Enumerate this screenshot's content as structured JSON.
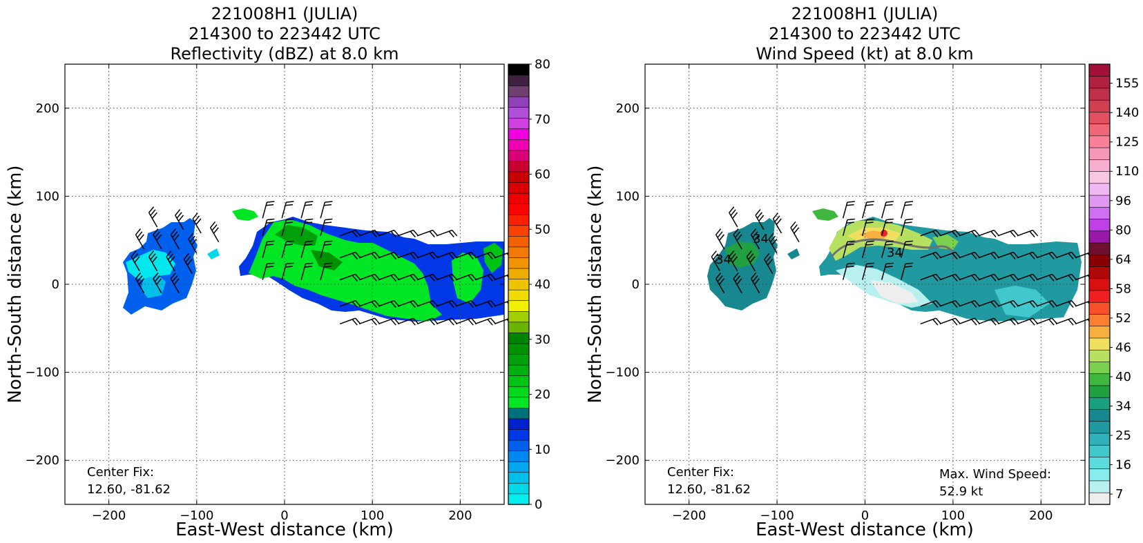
{
  "chart_data": [
    {
      "type": "heatmap",
      "title_lines": [
        "221008H1 (JULIA)",
        "214300 to 223442 UTC",
        "Reflectivity (dBZ) at 8.0 km"
      ],
      "xlabel": "East-West distance (km)",
      "ylabel": "North-South distance (km)",
      "xlim": [
        -250,
        250
      ],
      "ylim": [
        -250,
        250
      ],
      "xticks": [
        -200,
        -100,
        0,
        100,
        200
      ],
      "yticks": [
        -200,
        -100,
        0,
        100,
        200
      ],
      "grid": true,
      "colorbar": {
        "ticks": [
          0,
          10,
          20,
          30,
          40,
          50,
          60,
          70,
          80
        ],
        "min": 0,
        "max": 80,
        "colors": [
          "#00eeee",
          "#00d8e8",
          "#00c0ea",
          "#00a6ee",
          "#0088f0",
          "#0060ee",
          "#0038e8",
          "#0022cc",
          "#00707c",
          "#00e624",
          "#00d81e",
          "#00c414",
          "#00b00e",
          "#00a00a",
          "#009000",
          "#008400",
          "#6ab400",
          "#a0d000",
          "#f0f000",
          "#f0dc00",
          "#eec400",
          "#eeac00",
          "#f09400",
          "#f27a00",
          "#f46200",
          "#f84400",
          "#fc2000",
          "#ff0000",
          "#ee0000",
          "#d80000",
          "#c80000",
          "#c80030",
          "#dc0078",
          "#f000b4",
          "#f000e0",
          "#d040e0",
          "#b050d8",
          "#9040b8",
          "#704070",
          "#402040",
          "#000000"
        ]
      },
      "regions": [
        {
          "name": "western cell",
          "value_range_dBZ": [
            0,
            18
          ],
          "extent_x": [
            -185,
            -100
          ],
          "extent_y": [
            -35,
            70
          ]
        },
        {
          "name": "main band",
          "value_range_dBZ": [
            10,
            28
          ],
          "extent_x": [
            -50,
            250
          ],
          "extent_y": [
            -45,
            85
          ]
        }
      ],
      "annotations": {
        "center_fix_label": "Center Fix:",
        "center_fix_value": "12.60, -81.62"
      }
    },
    {
      "type": "heatmap",
      "title_lines": [
        "221008H1 (JULIA)",
        "214300 to 223442 UTC",
        "Wind Speed (kt) at 8.0 km"
      ],
      "xlabel": "East-West distance (km)",
      "ylabel": "North-South distance (km)",
      "xlim": [
        -250,
        250
      ],
      "ylim": [
        -250,
        250
      ],
      "xticks": [
        -200,
        -100,
        0,
        100,
        200
      ],
      "yticks": [
        -200,
        -100,
        0,
        100,
        200
      ],
      "grid": true,
      "colorbar": {
        "ticks": [
          7,
          16,
          25,
          34,
          40,
          46,
          52,
          58,
          64,
          80,
          96,
          110,
          125,
          140,
          155
        ],
        "colors": [
          "#eeeeee",
          "#b8f0f0",
          "#88ecec",
          "#5cdcdc",
          "#40c8cc",
          "#30b0b8",
          "#209aa0",
          "#188890",
          "#18a080",
          "#20a040",
          "#40b840",
          "#7cd050",
          "#b8e060",
          "#f0e060",
          "#f8b040",
          "#f88030",
          "#f85028",
          "#f02020",
          "#d81010",
          "#b00808",
          "#880000",
          "#701030",
          "#9818a8",
          "#c040e8",
          "#d070f0",
          "#e098f0",
          "#f0b8f0",
          "#f8c8e0",
          "#f8b0d0",
          "#f898b8",
          "#f88098",
          "#f06878",
          "#e05060",
          "#d04050",
          "#c03048",
          "#b02040",
          "#a01038"
        ]
      },
      "contour_labels": [
        "34",
        "34",
        "34"
      ],
      "annotations": {
        "center_fix_label": "Center Fix:",
        "center_fix_value": "12.60, -81.62",
        "max_wind_label": "Max. Wind Speed:",
        "max_wind_value": "52.9 kt"
      }
    }
  ]
}
